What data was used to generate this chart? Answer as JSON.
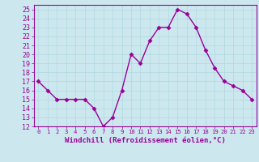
{
  "x": [
    0,
    1,
    2,
    3,
    4,
    5,
    6,
    7,
    8,
    9,
    10,
    11,
    12,
    13,
    14,
    15,
    16,
    17,
    18,
    19,
    20,
    21,
    22,
    23
  ],
  "y": [
    17,
    16,
    15,
    15,
    15,
    15,
    14,
    12,
    13,
    16,
    20,
    19,
    21.5,
    23,
    23,
    25,
    24.5,
    23,
    20.5,
    18.5,
    17,
    16.5,
    16,
    15
  ],
  "line_color": "#990099",
  "marker": "D",
  "marker_size": 2.5,
  "bg_color": "#cce8ee",
  "grid_color": "#b0d8e0",
  "xlabel": "Windchill (Refroidissement éolien,°C)",
  "xlim": [
    -0.5,
    23.5
  ],
  "ylim": [
    12,
    25.5
  ],
  "yticks": [
    12,
    13,
    14,
    15,
    16,
    17,
    18,
    19,
    20,
    21,
    22,
    23,
    24,
    25
  ],
  "xticks": [
    0,
    1,
    2,
    3,
    4,
    5,
    6,
    7,
    8,
    9,
    10,
    11,
    12,
    13,
    14,
    15,
    16,
    17,
    18,
    19,
    20,
    21,
    22,
    23
  ],
  "xlabel_color": "#990099",
  "xlabel_fontsize": 6.5,
  "ytick_fontsize": 6.0,
  "xtick_fontsize": 5.2,
  "tick_color": "#990099",
  "spine_color": "#990099",
  "line_width": 1.0,
  "grid_linewidth": 0.5
}
